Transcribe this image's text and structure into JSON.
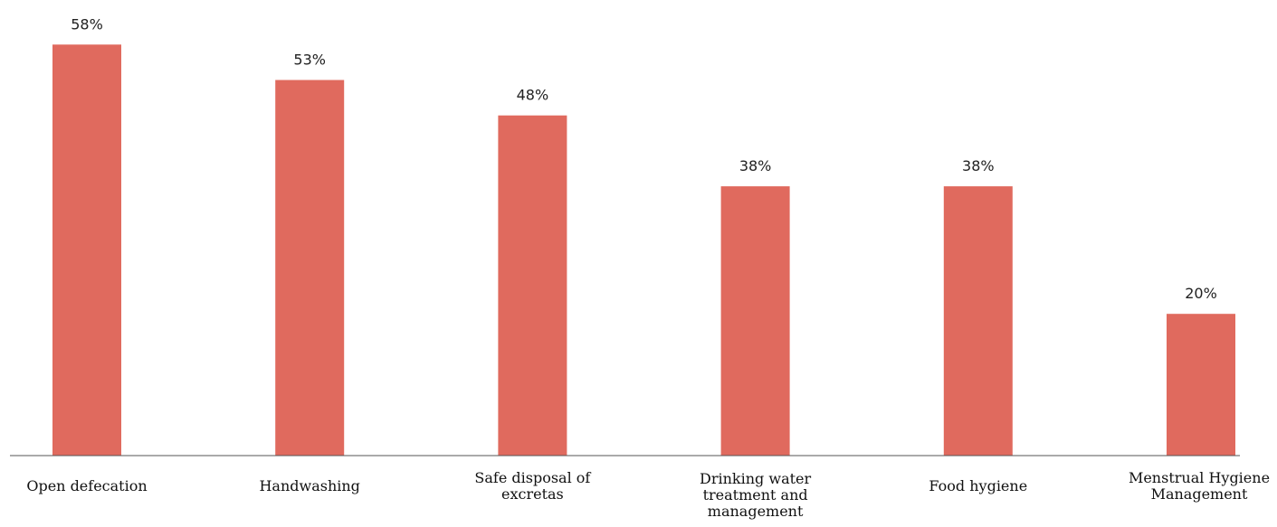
{
  "chart_data": {
    "type": "bar",
    "categories": [
      [
        "Open defecation"
      ],
      [
        "Handwashing"
      ],
      [
        "Safe disposal of",
        "excretas"
      ],
      [
        "Drinking water",
        "treatment and",
        "management"
      ],
      [
        "Food hygiene"
      ],
      [
        "Menstrual Hygiene",
        "Management"
      ]
    ],
    "values": [
      58,
      53,
      48,
      38,
      38,
      20
    ],
    "value_labels": [
      "58%",
      "53%",
      "48%",
      "38%",
      "38%",
      "20%"
    ],
    "ylim": [
      0,
      60
    ],
    "grid": false,
    "bar_color": "#e06a5e",
    "axis_color": "#555555"
  }
}
